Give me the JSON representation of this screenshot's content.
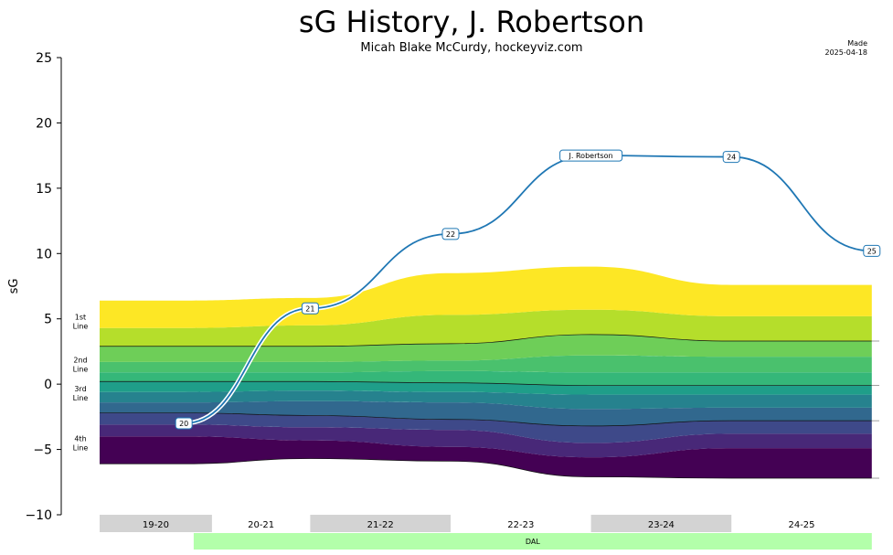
{
  "header": {
    "title": "sG History, J. Robertson",
    "subtitle": "Micah Blake McCurdy, hockeyviz.com",
    "made_label": "Made",
    "made_date": "2025-04-18"
  },
  "chart_data": {
    "type": "area",
    "ylabel": "sG",
    "ylim": [
      -10,
      25
    ],
    "yticks": [
      "−10",
      "−5",
      "0",
      "5",
      "10",
      "15",
      "20",
      "25"
    ],
    "ytick_values": [
      -10,
      -5,
      0,
      5,
      10,
      15,
      20,
      25
    ],
    "grid": false,
    "season_x": [
      0,
      1,
      2,
      3,
      4,
      5
    ],
    "bands": {
      "colors": [
        "#440154",
        "#482878",
        "#3e4989",
        "#31688e",
        "#26828e",
        "#1f9e89",
        "#35b779",
        "#6ece58",
        "#b5de2b",
        "#fde725"
      ],
      "boundaries": [
        [
          -6.1,
          -6.1,
          -5.7,
          -5.9,
          -7.1,
          -7.2,
          -7.2
        ],
        [
          -4.0,
          -4.0,
          -4.3,
          -4.8,
          -5.6,
          -4.9,
          -4.9
        ],
        [
          -3.1,
          -3.1,
          -3.3,
          -3.5,
          -4.5,
          -3.8,
          -3.8
        ],
        [
          -2.2,
          -2.2,
          -2.4,
          -2.7,
          -3.2,
          -2.8,
          -2.8
        ],
        [
          -1.4,
          -1.4,
          -1.3,
          -1.4,
          -1.9,
          -1.8,
          -1.8
        ],
        [
          -0.6,
          -0.6,
          -0.5,
          -0.6,
          -0.8,
          -0.8,
          -0.8
        ],
        [
          0.2,
          0.2,
          0.2,
          0.1,
          -0.1,
          -0.1,
          -0.1
        ],
        [
          0.9,
          0.9,
          0.9,
          1.0,
          0.9,
          0.9,
          0.9
        ],
        [
          1.7,
          1.7,
          1.7,
          1.8,
          2.2,
          2.1,
          2.1
        ],
        [
          2.9,
          2.9,
          2.9,
          3.1,
          3.8,
          3.3,
          3.3
        ],
        [
          4.3,
          4.3,
          4.5,
          5.3,
          5.7,
          5.2,
          5.2
        ],
        [
          6.4,
          6.4,
          6.6,
          8.5,
          9.0,
          7.6,
          7.6
        ]
      ],
      "band_x": [
        0,
        0.6,
        1.5,
        2.5,
        3.5,
        4.5,
        5.5
      ],
      "divider_indices": [
        0,
        3,
        6,
        9
      ]
    },
    "line_labels": [
      {
        "text1": "1st",
        "text2": "Line",
        "y": 4.8
      },
      {
        "text1": "2nd",
        "text2": "Line",
        "y": 1.5
      },
      {
        "text1": "3rd",
        "text2": "Line",
        "y": -0.7
      },
      {
        "text1": "4th",
        "text2": "Line",
        "y": -4.5
      }
    ],
    "series": [
      {
        "name": "J. Robertson",
        "color": "#1f77b4",
        "points": [
          {
            "x": 0.6,
            "y": -3.0,
            "label": "20"
          },
          {
            "x": 1.5,
            "y": 5.8,
            "label": "21"
          },
          {
            "x": 2.5,
            "y": 11.5,
            "label": "22"
          },
          {
            "x": 3.5,
            "y": 17.5,
            "label": "J. Robertson"
          },
          {
            "x": 4.5,
            "y": 17.4,
            "label": "24"
          },
          {
            "x": 5.5,
            "y": 10.2,
            "label": "25"
          }
        ]
      }
    ],
    "seasons": [
      {
        "label": "19-20",
        "x0": 0,
        "x1": 0.8,
        "shaded": true
      },
      {
        "label": "20-21",
        "x0": 0.8,
        "x1": 1.5,
        "shaded": false
      },
      {
        "label": "21-22",
        "x0": 1.5,
        "x1": 2.5,
        "shaded": true
      },
      {
        "label": "22-23",
        "x0": 2.5,
        "x1": 3.5,
        "shaded": false
      },
      {
        "label": "23-24",
        "x0": 3.5,
        "x1": 4.5,
        "shaded": true
      },
      {
        "label": "24-25",
        "x0": 4.5,
        "x1": 5.5,
        "shaded": false
      }
    ],
    "teams": [
      {
        "label": "DAL",
        "x0": 0.67,
        "x1": 5.5,
        "color": "#b3ffaa"
      }
    ]
  }
}
